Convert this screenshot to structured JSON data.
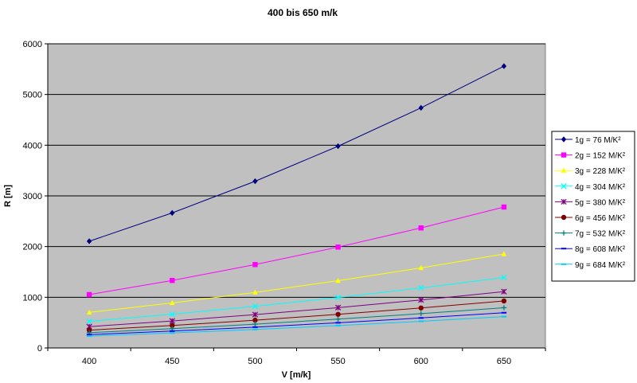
{
  "chart_data": {
    "type": "line",
    "title": "400 bis 650 m/k",
    "xlabel": "V [m/k]",
    "ylabel": "R [m]",
    "x": [
      400,
      450,
      500,
      550,
      600,
      650
    ],
    "xlim": [
      375,
      675
    ],
    "ylim": [
      0,
      6000
    ],
    "y_ticks": [
      0,
      1000,
      2000,
      3000,
      4000,
      5000,
      6000
    ],
    "grid": "horizontal",
    "legend_position": "right",
    "series": [
      {
        "name": "1g = 76 M/K²",
        "color": "#000080",
        "marker": "diamond",
        "values": [
          2105,
          2664,
          3289,
          3980,
          4737,
          5559
        ]
      },
      {
        "name": "2g = 152 M/K²",
        "color": "#ff00ff",
        "marker": "square",
        "values": [
          1053,
          1332,
          1645,
          1990,
          2368,
          2780
        ]
      },
      {
        "name": "3g = 228 M/K²",
        "color": "#ffff00",
        "marker": "triangle",
        "values": [
          702,
          888,
          1096,
          1327,
          1579,
          1853
        ]
      },
      {
        "name": "4g = 304 M/K²",
        "color": "#00ffff",
        "marker": "x",
        "values": [
          526,
          666,
          822,
          995,
          1184,
          1390
        ]
      },
      {
        "name": "5g = 380 M/K²",
        "color": "#800080",
        "marker": "star",
        "values": [
          421,
          533,
          658,
          796,
          947,
          1112
        ]
      },
      {
        "name": "6g = 456 M/K²",
        "color": "#800000",
        "marker": "circle",
        "values": [
          351,
          444,
          548,
          663,
          789,
          927
        ]
      },
      {
        "name": "7g = 532 M/K²",
        "color": "#008080",
        "marker": "plus",
        "values": [
          301,
          381,
          470,
          569,
          677,
          794
        ]
      },
      {
        "name": "8g = 608 M/K²",
        "color": "#0000ff",
        "marker": "dash",
        "values": [
          263,
          333,
          411,
          497,
          592,
          695
        ]
      },
      {
        "name": "9g = 684 M/K²",
        "color": "#00ccff",
        "marker": "dash",
        "values": [
          234,
          296,
          365,
          442,
          526,
          618
        ]
      }
    ]
  }
}
